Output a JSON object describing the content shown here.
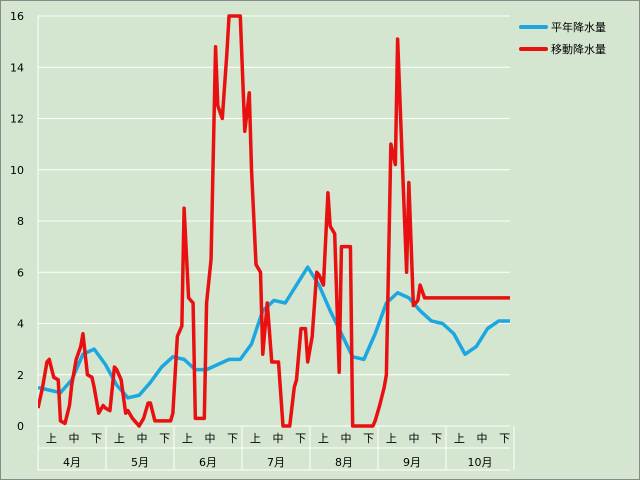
{
  "chart_data": {
    "type": "line",
    "title": "",
    "xlabel": "",
    "ylabel": "",
    "ylim": [
      0,
      16
    ],
    "yticks": [
      0,
      2,
      4,
      6,
      8,
      10,
      12,
      14,
      16
    ],
    "grid": true,
    "legend_position": "top-right",
    "background": "#d4e6d0",
    "months": [
      "4月",
      "5月",
      "6月",
      "7月",
      "8月",
      "9月",
      "10月"
    ],
    "periods": [
      "上",
      "中",
      "下"
    ],
    "x_range": [
      0,
      210
    ],
    "series": [
      {
        "name": "平年降水量",
        "color": "#1ca7e0",
        "x": [
          0,
          5,
          10,
          15,
          20,
          25,
          30,
          35,
          40,
          45,
          50,
          55,
          60,
          65,
          70,
          75,
          80,
          85,
          90,
          95,
          100,
          105,
          110,
          115,
          120,
          125,
          130,
          135,
          140,
          145,
          150,
          155,
          160,
          165,
          170,
          175,
          180,
          185,
          190,
          195,
          200,
          205,
          210
        ],
        "values": [
          1.5,
          1.4,
          1.3,
          1.8,
          2.8,
          3.0,
          2.4,
          1.6,
          1.1,
          1.2,
          1.7,
          2.3,
          2.7,
          2.6,
          2.2,
          2.2,
          2.4,
          2.6,
          2.6,
          3.2,
          4.5,
          4.9,
          4.8,
          5.5,
          6.2,
          5.5,
          4.5,
          3.6,
          2.7,
          2.6,
          3.6,
          4.8,
          5.2,
          5.0,
          4.5,
          4.1,
          4.0,
          3.6,
          2.8,
          3.1,
          3.8,
          4.1,
          4.1
        ]
      },
      {
        "name": "移動降水量",
        "color": "#e81010",
        "x": [
          0,
          2,
          4,
          5,
          7,
          9,
          10,
          12,
          14,
          15,
          17,
          19,
          20,
          22,
          24,
          25,
          27,
          29,
          30,
          32,
          34,
          35,
          37,
          39,
          40,
          42,
          44,
          45,
          47,
          49,
          50,
          52,
          54,
          55,
          57,
          59,
          60,
          62,
          64,
          65,
          67,
          69,
          70,
          72,
          74,
          75,
          77,
          79,
          80,
          82,
          84,
          85,
          87,
          89,
          90,
          92,
          94,
          95,
          97,
          99,
          100,
          102,
          104,
          105,
          107,
          109,
          110,
          112,
          114,
          115,
          117,
          119,
          120,
          122,
          124,
          125,
          127,
          129,
          130,
          132,
          134,
          135,
          137,
          139,
          140,
          142,
          144,
          145,
          147,
          149,
          150,
          152,
          154,
          155,
          157,
          159,
          160,
          162,
          164,
          165,
          167,
          169,
          170,
          172,
          174,
          175,
          177,
          179,
          180,
          182,
          184,
          185,
          187,
          189,
          190,
          192,
          194,
          195,
          197,
          199,
          200,
          202,
          204,
          205,
          207,
          209,
          210
        ],
        "values": [
          0.7,
          1.5,
          2.5,
          2.6,
          1.9,
          1.8,
          0.2,
          0.1,
          0.8,
          1.6,
          2.6,
          3.1,
          3.6,
          2.0,
          1.9,
          1.5,
          0.5,
          0.8,
          0.7,
          0.6,
          2.3,
          2.2,
          1.8,
          0.5,
          0.6,
          0.3,
          0.1,
          0.0,
          0.3,
          0.9,
          0.9,
          0.2,
          0.2,
          0.2,
          0.2,
          0.2,
          0.5,
          3.5,
          3.9,
          8.5,
          5.0,
          4.8,
          0.3,
          0.3,
          0.3,
          4.8,
          6.5,
          14.8,
          12.5,
          12.0,
          14.5,
          16,
          16,
          16,
          16,
          11.5,
          13.0,
          10.0,
          6.3,
          6.0,
          2.8,
          4.8,
          2.5,
          2.5,
          2.5,
          0,
          0,
          0,
          1.5,
          1.8,
          3.8,
          3.8,
          2.5,
          3.5,
          6.0,
          5.9,
          5.5,
          9.1,
          7.8,
          7.5,
          2.1,
          7.0,
          7.0,
          7.0,
          0,
          0,
          0,
          0,
          0,
          0,
          0.2,
          0.8,
          1.5,
          2.0,
          11.0,
          10.2,
          15.1,
          10.5,
          6.0,
          9.5,
          4.7,
          4.9,
          5.5,
          5.0,
          5.0,
          5.0,
          5.0,
          5.0,
          5.0,
          5.0,
          5.0,
          5.0,
          5.0,
          5.0,
          5.0,
          5.0,
          5.0,
          5.0,
          5.0,
          5.0,
          5.0,
          5.0,
          5.0,
          5.0,
          5.0,
          5.0,
          5.0
        ]
      }
    ]
  }
}
